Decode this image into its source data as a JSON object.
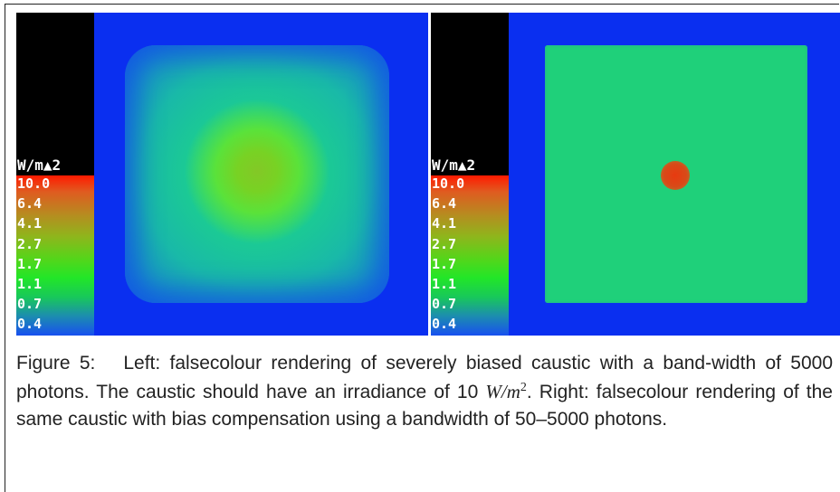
{
  "figure": {
    "panels": [
      {
        "scale_unit": "W/m▲2",
        "scale_ticks": [
          "10.0",
          "6.4",
          "4.1",
          "2.7",
          "1.7",
          "1.1",
          "0.7",
          "0.4"
        ]
      },
      {
        "scale_unit": "W/m▲2",
        "scale_ticks": [
          "10.0",
          "6.4",
          "4.1",
          "2.7",
          "1.7",
          "1.1",
          "0.7",
          "0.4"
        ]
      }
    ],
    "caption": {
      "label": "Figure 5:",
      "part1": "Left: falsecolour rendering of severely biased caustic with a band-width of 5000 photons. The caustic should have an irradiance of 10",
      "unit_main": "W/m",
      "unit_exp": "2",
      "part2": ". Right: falsecolour rendering of the same caustic with bias compensation using a bandwidth of 50–5000 photons."
    }
  }
}
